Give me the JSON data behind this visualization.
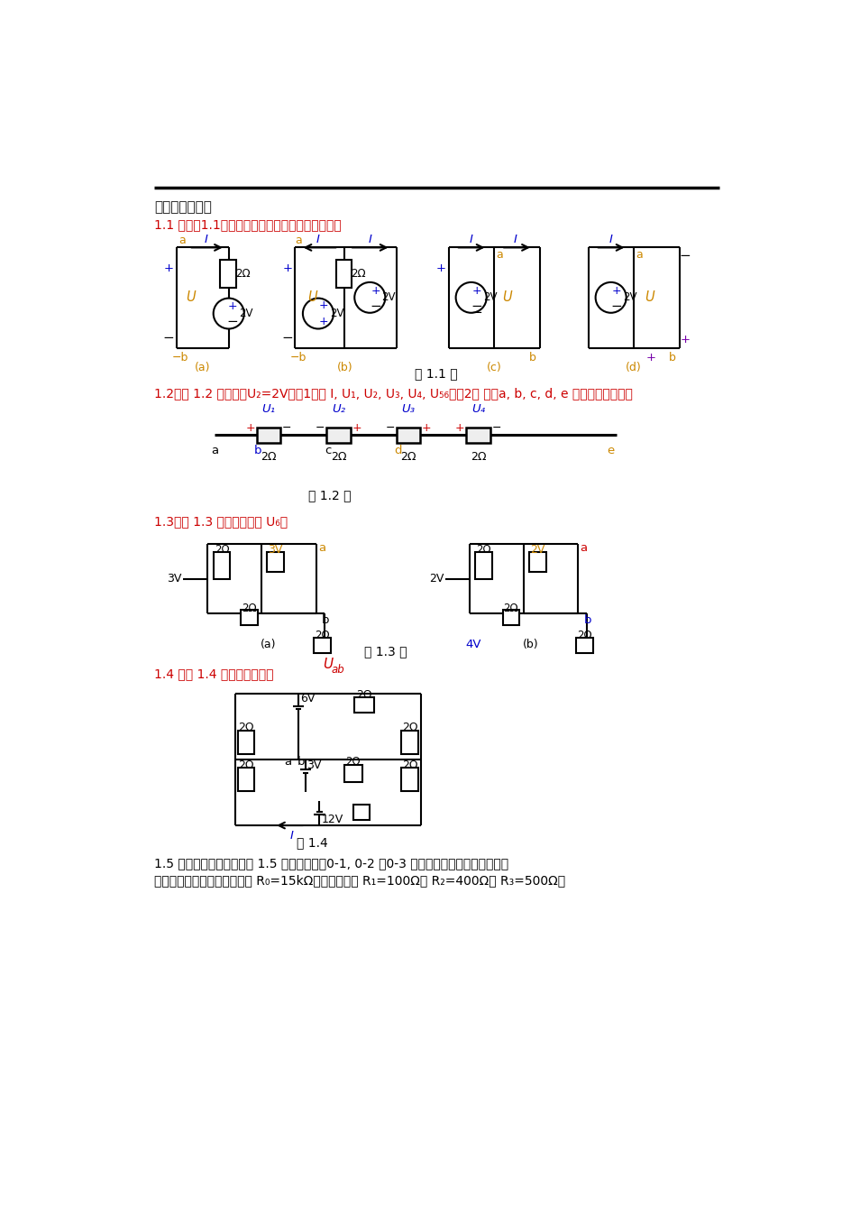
{
  "title": "第一章习题答案",
  "q11": "1.1 写出题1.1图中有源支路的电压，电流关系式。",
  "q12": "1.2在题 1.2 图中已知U₂=2V，（1）求 I, U₁, U₂, U₃, U₄, U₅₆，（2） 比较a, b, c, d, e 各点电位的高低。",
  "q13": "1.3在题 1.3 图所示电路中 U₆。",
  "q14_pre": "1.4 求题 1.4 图所示电路电压 ",
  "q14_var": "U",
  "q14_sub": "ab",
  "q15_1": "1.5 多量程直流电流表如题 1.5 图所示，计算0-1, 0-2 及0-3 各端点的等效电阱，即各档的",
  "q15_2": "电流表阱，已知表头等效电阱 R₀=15kΩ，各分流电阱 R₁=100Ω， R₂=400Ω， R₃=500Ω。",
  "fig11": "题 1.1 图",
  "fig12": "题 1.2 图",
  "fig13": "题 1.3 图",
  "fig14": "题 1.4",
  "cr": "#cc0000",
  "cb": "#0000cc",
  "co": "#cc8800",
  "cp": "#7700aa",
  "cblk": "#000000",
  "cblu": "#0055aa",
  "cbrown": "#884400"
}
